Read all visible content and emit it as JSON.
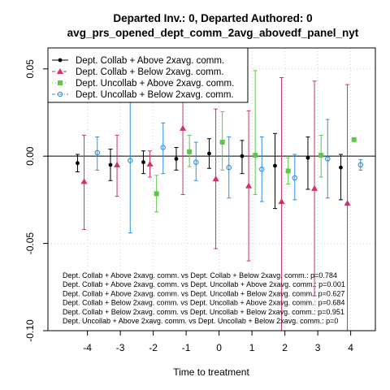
{
  "chart_data": {
    "type": "scatter",
    "title_line1": "Departed Inv.: 0, Departed Authored: 0",
    "title_line2": "avg_prs_opened_dept_comm_2avg_abovedf_panel_nyt",
    "xlabel": "Time to treatment",
    "ylabel": "",
    "xlim": [
      -5.2,
      4.75
    ],
    "ylim": [
      -0.1,
      0.062
    ],
    "xticks": [
      -4,
      -3,
      -2,
      -1,
      0,
      1,
      2,
      3,
      4
    ],
    "xtick_labels": [
      "-4",
      "-3",
      "-2",
      "-1",
      "0",
      "1",
      "2",
      "3",
      "4"
    ],
    "yticks": [
      -0.1,
      -0.05,
      0,
      0.05
    ],
    "ytick_labels": [
      "-0.10",
      "-0.05",
      "0.00",
      "0.05"
    ],
    "grid": true,
    "zero_line": true,
    "legend_position": "top-left",
    "series": [
      {
        "name": "Dept. Collab + Above 2xavg. comm.",
        "color": "#000000",
        "marker": "circle-filled",
        "line": "solid",
        "x": [
          -4,
          -3,
          -2,
          -1,
          0,
          1,
          2,
          3,
          4
        ],
        "y": [
          -0.004,
          -0.005,
          -0.0035,
          -0.0015,
          0.0015,
          0.0,
          -0.0055,
          -0.001,
          -0.0065
        ],
        "ci_low": [
          -0.009,
          -0.014,
          -0.01,
          -0.008,
          -0.007,
          -0.01,
          -0.03,
          -0.019,
          -0.025
        ],
        "ci_high": [
          0.001,
          0.004,
          0.003,
          0.005,
          0.01,
          0.009,
          0.013,
          0.011,
          0.001
        ]
      },
      {
        "name": "Dept. Collab + Below 2xavg. comm.",
        "color": "#d0335e",
        "marker": "triangle",
        "line": "dashed",
        "x": [
          -4,
          -3,
          -2,
          -1,
          0,
          1,
          2,
          3,
          4
        ],
        "y": [
          -0.0145,
          -0.005,
          -0.0045,
          0.016,
          -0.013,
          -0.017,
          -0.026,
          -0.0185,
          -0.027
        ],
        "ci_low": [
          -0.042,
          -0.023,
          -0.012,
          -0.022,
          -0.053,
          -0.06,
          -0.1,
          -0.08,
          -0.1
        ],
        "ci_high": [
          0.012,
          0.012,
          0.003,
          0.054,
          0.027,
          0.026,
          0.045,
          0.043,
          0.041
        ]
      },
      {
        "name": "Dept. Uncollab + Above 2xavg. comm.",
        "color": "#5fc64a",
        "marker": "square",
        "line": "dotted",
        "x": [
          -4,
          -3,
          -2,
          -1,
          0,
          1,
          2,
          3,
          4
        ],
        "y": [
          null,
          null,
          -0.0215,
          0.0025,
          0.008,
          0.0005,
          -0.0085,
          0.0005,
          0.0095
        ],
        "ci_low": [
          null,
          null,
          -0.032,
          -0.006,
          -0.008,
          -0.022,
          -0.016,
          -0.012,
          null
        ],
        "ci_high": [
          null,
          null,
          -0.011,
          0.012,
          0.0255,
          0.049,
          -0.001,
          0.012,
          null
        ]
      },
      {
        "name": "Dept. Uncollab + Below 2xavg. comm.",
        "color": "#2f8fe6",
        "marker": "circle-open",
        "line": "dashdot",
        "x": [
          -4,
          -3,
          -2,
          -1,
          0,
          1,
          2,
          3,
          4
        ],
        "y": [
          0.002,
          -0.0025,
          0.005,
          -0.0035,
          -0.0065,
          -0.0075,
          -0.0125,
          -0.0015,
          -0.005
        ],
        "ci_low": [
          -0.008,
          -0.044,
          -0.01,
          -0.014,
          -0.024,
          -0.026,
          -0.025,
          -0.024,
          -0.008
        ],
        "ci_high": [
          0.011,
          0.038,
          0.019,
          0.008,
          0.011,
          0.011,
          0.001,
          0.021,
          -0.002
        ]
      }
    ],
    "annotations": [
      "Dept. Collab + Above 2xavg. comm. vs Dept. Collab + Below 2xavg. comm.: p=0.784",
      "Dept. Collab + Above 2xavg. comm. vs Dept. Uncollab + Above 2xavg. comm.: p=0.001",
      "Dept. Collab + Above 2xavg. comm. vs Dept. Uncollab + Below 2xavg. comm.: p=0.627",
      "Dept. Collab + Below 2xavg. comm. vs Dept. Uncollab + Above 2xavg. comm.: p=0.684",
      "Dept. Collab + Below 2xavg. comm. vs Dept. Uncollab + Below 2xavg. comm.: p=0.951",
      "Dept. Uncollab + Above 2xavg. comm. vs Dept. Uncollab + Below 2xavg. comm.: p=0"
    ]
  }
}
